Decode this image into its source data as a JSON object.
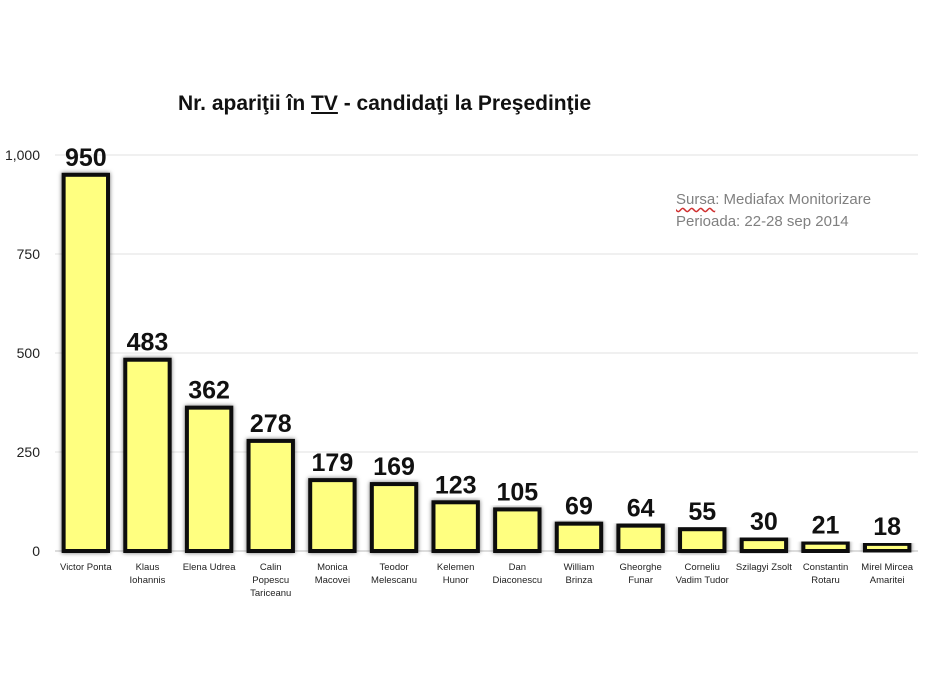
{
  "chart_data": {
    "type": "bar",
    "title_parts": [
      "Nr. apariţii în ",
      "TV",
      " -  candidaţi la Preşedinţie"
    ],
    "source_label": "Sursa",
    "source_value": ": Mediafax Monitorizare",
    "period": "Perioada: 22-28 sep 2014",
    "categories": [
      [
        "Victor Ponta"
      ],
      [
        "Klaus",
        "Iohannis"
      ],
      [
        "Elena Udrea"
      ],
      [
        "Calin",
        "Popescu",
        "Tariceanu"
      ],
      [
        "Monica",
        "Macovei"
      ],
      [
        "Teodor",
        "Melescanu"
      ],
      [
        "Kelemen",
        "Hunor"
      ],
      [
        "Dan",
        "Diaconescu"
      ],
      [
        "William",
        "Brinza"
      ],
      [
        "Gheorghe",
        "Funar"
      ],
      [
        "Corneliu",
        "Vadim Tudor"
      ],
      [
        "Szilagyi Zsolt"
      ],
      [
        "Constantin",
        "Rotaru"
      ],
      [
        "Mirel Mircea",
        "Amaritei"
      ]
    ],
    "values": [
      950,
      483,
      362,
      278,
      179,
      169,
      123,
      105,
      69,
      64,
      55,
      30,
      21,
      18
    ],
    "value_labels": [
      "950",
      "483",
      "362",
      "278",
      "179",
      "169",
      "123",
      "105",
      "69",
      "64",
      "55",
      "30",
      "21",
      "18"
    ],
    "yticks": [
      0,
      250,
      500,
      750,
      1000
    ],
    "ytick_labels": [
      "0",
      "250",
      "500",
      "750",
      "1,000"
    ],
    "ylim": [
      0,
      1000
    ],
    "grid": true,
    "bar_color": "#ffff80",
    "bar_edge_color": "#111111"
  }
}
